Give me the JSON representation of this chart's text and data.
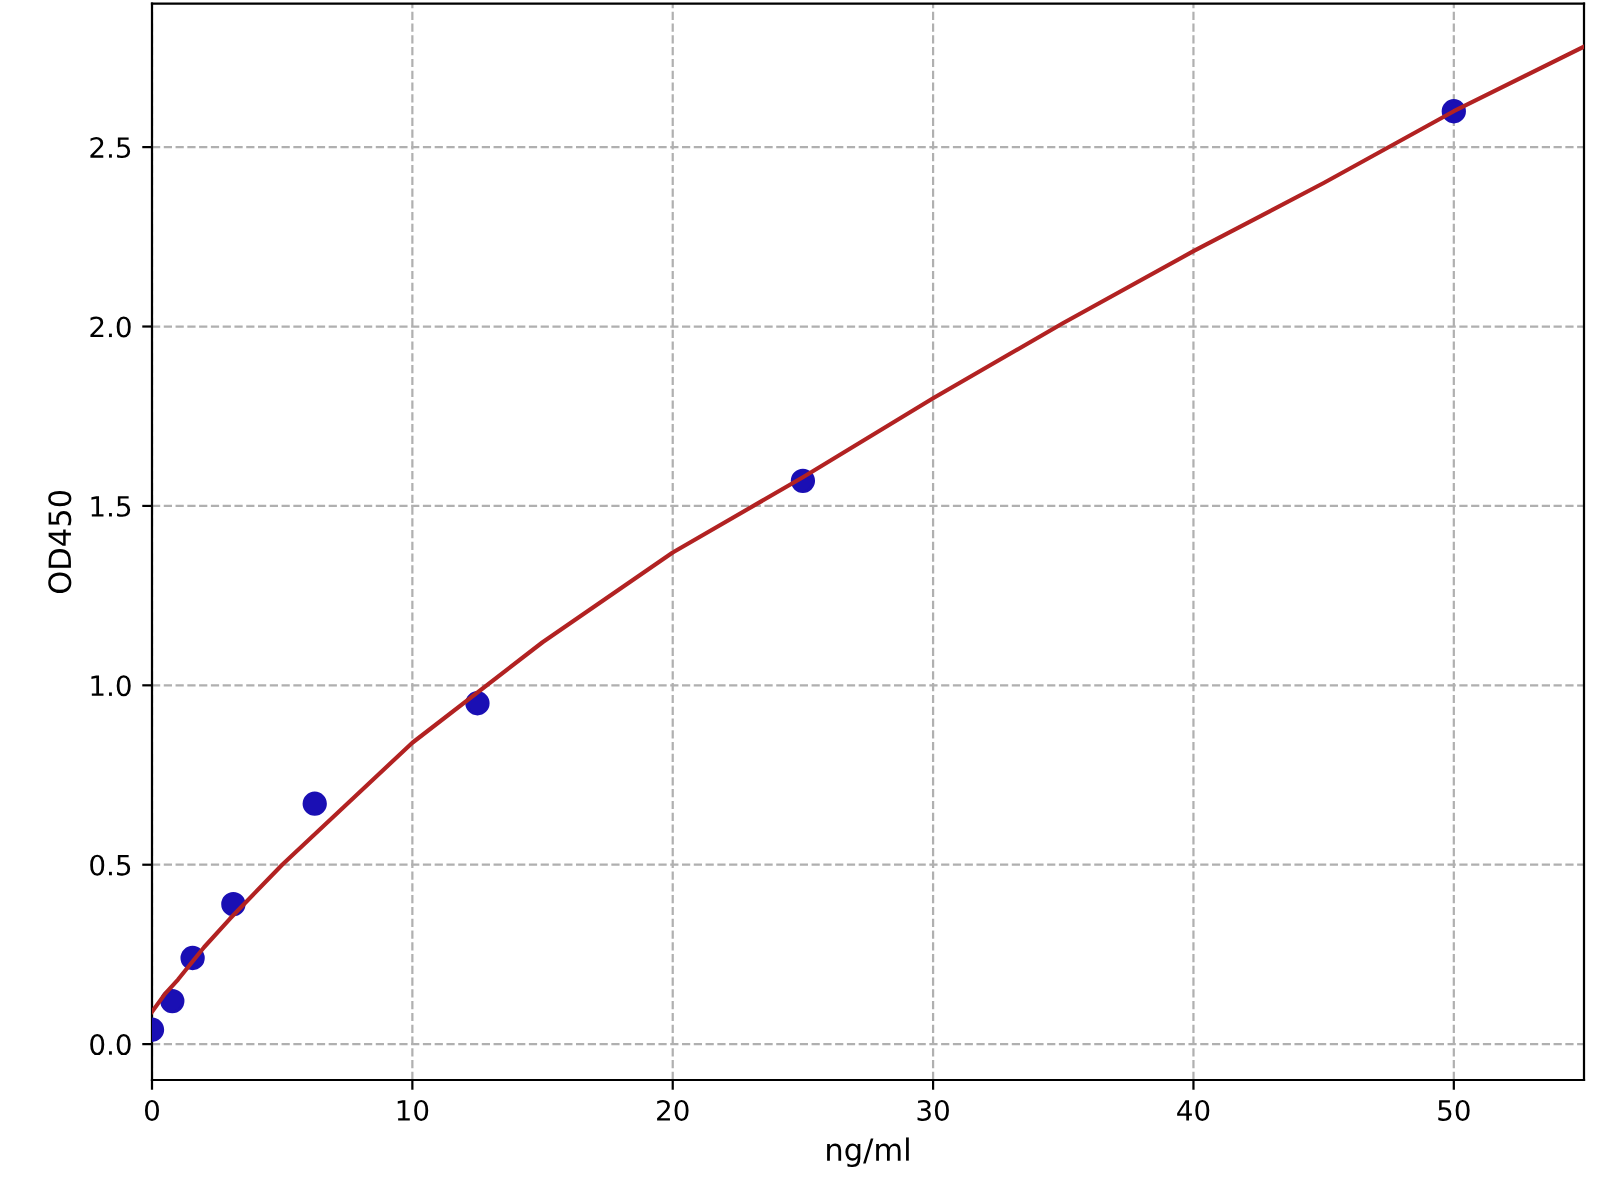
{
  "chart_data": {
    "type": "scatter",
    "xlabel": "ng/ml",
    "ylabel": "OD450",
    "xlim": [
      0,
      55
    ],
    "ylim": [
      -0.1,
      2.9
    ],
    "xticks": [
      0,
      10,
      20,
      30,
      40,
      50
    ],
    "yticks": [
      {
        "value": 0,
        "label": "0.0"
      },
      {
        "value": 0.5,
        "label": "0.5"
      },
      {
        "value": 1,
        "label": "1.0"
      },
      {
        "value": 1.5,
        "label": "1.5"
      },
      {
        "value": 2,
        "label": "2.0"
      },
      {
        "value": 2.5,
        "label": "2.5"
      }
    ],
    "grid": true,
    "series": [
      {
        "color": "#1a0fb4",
        "marker": "circle",
        "x": [
          0,
          0.78,
          1.56,
          3.125,
          6.25,
          12.5,
          25,
          50
        ],
        "values": [
          0.04,
          0.12,
          0.24,
          0.39,
          0.67,
          0.95,
          1.57,
          2.6
        ]
      },
      {
        "type": "line",
        "color": "#b22222",
        "marker": "none",
        "line_style": "solid",
        "x": [
          0,
          0.5,
          1,
          2,
          3,
          5,
          7.5,
          10,
          15,
          20,
          25,
          30,
          35,
          40,
          45,
          50,
          55
        ],
        "values": [
          0.09,
          0.14,
          0.18,
          0.27,
          0.35,
          0.5,
          0.67,
          0.84,
          1.12,
          1.37,
          1.58,
          1.8,
          2.01,
          2.21,
          2.4,
          2.6,
          2.78
        ]
      }
    ]
  }
}
